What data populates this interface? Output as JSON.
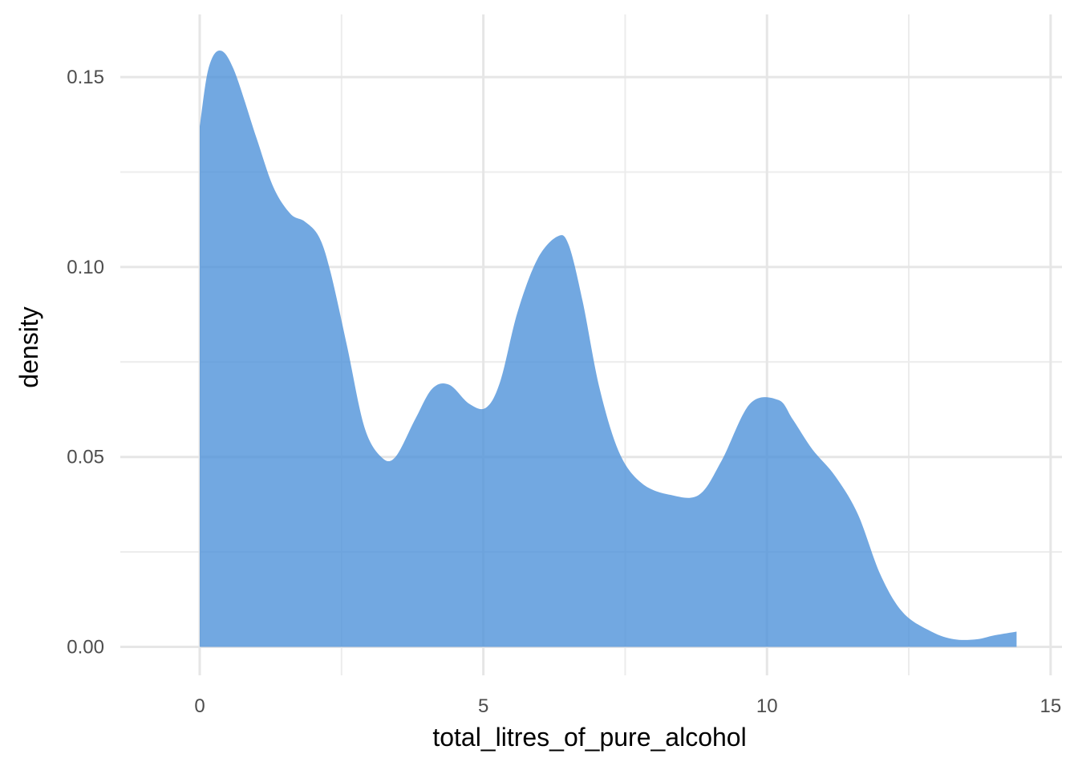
{
  "chart_data": {
    "type": "area",
    "title": "",
    "xlabel": "total_litres_of_pure_alcohol",
    "ylabel": "density",
    "xlim": [
      -1.4,
      15.2
    ],
    "ylim": [
      -0.0075,
      0.1665
    ],
    "x_ticks": [
      0,
      5,
      10,
      15
    ],
    "x_tick_labels": [
      "0",
      "5",
      "10",
      "15"
    ],
    "x_minor": [
      2.5,
      7.5,
      12.5
    ],
    "y_ticks": [
      0.0,
      0.05,
      0.1,
      0.15
    ],
    "y_tick_labels": [
      "0.00",
      "0.05",
      "0.10",
      "0.15"
    ],
    "y_minor": [
      0.025,
      0.075,
      0.125
    ],
    "grid": true,
    "fill_color": "#4a90d9",
    "fill_opacity": 0.78,
    "series": [
      {
        "x": [
          0.0,
          0.15,
          0.35,
          0.6,
          1.0,
          1.3,
          1.6,
          1.85,
          2.1,
          2.3,
          2.6,
          2.9,
          3.2,
          3.45,
          3.8,
          4.1,
          4.4,
          4.75,
          5.05,
          5.3,
          5.6,
          5.95,
          6.3,
          6.5,
          6.75,
          7.05,
          7.4,
          7.8,
          8.3,
          8.8,
          9.2,
          9.7,
          10.2,
          10.45,
          10.8,
          11.2,
          11.6,
          12.0,
          12.4,
          12.9,
          13.3,
          13.7,
          14.0,
          14.4
        ],
        "y": [
          0.137,
          0.152,
          0.157,
          0.152,
          0.134,
          0.121,
          0.114,
          0.112,
          0.108,
          0.099,
          0.079,
          0.058,
          0.05,
          0.05,
          0.06,
          0.068,
          0.069,
          0.064,
          0.063,
          0.07,
          0.088,
          0.102,
          0.108,
          0.106,
          0.091,
          0.068,
          0.051,
          0.043,
          0.04,
          0.04,
          0.049,
          0.064,
          0.065,
          0.06,
          0.052,
          0.045,
          0.035,
          0.019,
          0.009,
          0.004,
          0.002,
          0.002,
          0.003,
          0.004
        ]
      }
    ]
  }
}
